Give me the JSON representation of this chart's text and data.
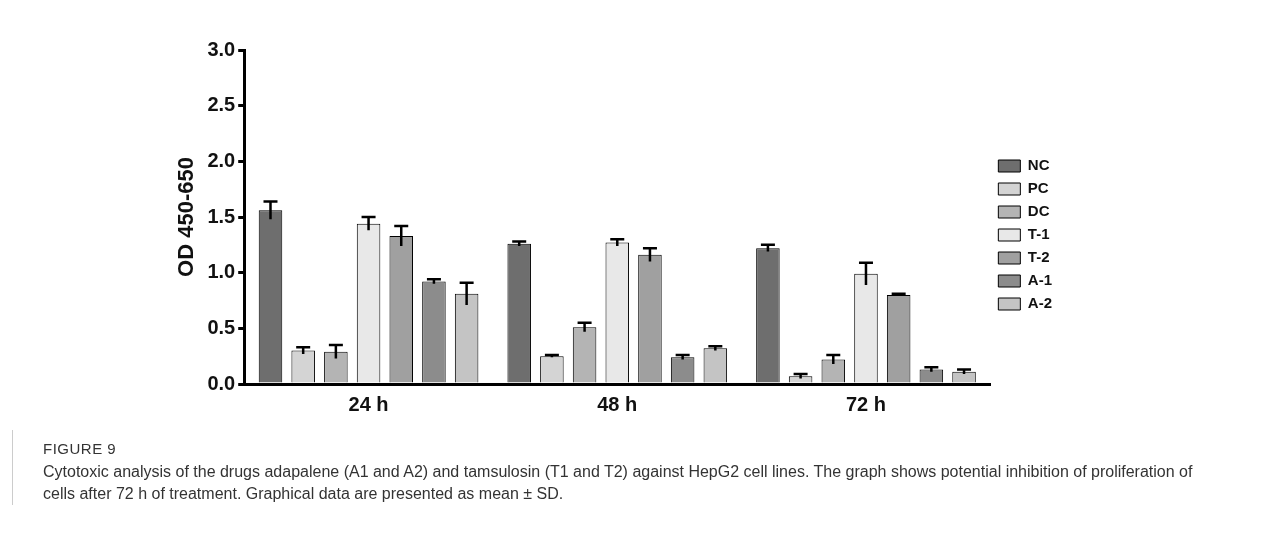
{
  "chart_data": {
    "type": "bar",
    "ylabel": "OD 450-650",
    "categories": [
      "24 h",
      "48 h",
      "72 h"
    ],
    "series": [
      {
        "name": "NC",
        "color": "#6e6e6e",
        "values": [
          1.56,
          1.26,
          1.22
        ],
        "errors": [
          0.08,
          0.02,
          0.03
        ]
      },
      {
        "name": "PC",
        "color": "#d4d4d4",
        "values": [
          0.3,
          0.25,
          0.07
        ],
        "errors": [
          0.03,
          0.01,
          0.02
        ]
      },
      {
        "name": "DC",
        "color": "#b4b4b4",
        "values": [
          0.29,
          0.51,
          0.22
        ],
        "errors": [
          0.06,
          0.04,
          0.04
        ]
      },
      {
        "name": "T-1",
        "color": "#e8e8e8",
        "values": [
          1.44,
          1.27,
          0.99
        ],
        "errors": [
          0.06,
          0.03,
          0.1
        ]
      },
      {
        "name": "T-2",
        "color": "#a0a0a0",
        "values": [
          1.33,
          1.16,
          0.8
        ],
        "errors": [
          0.09,
          0.06,
          0.01
        ]
      },
      {
        "name": "A-1",
        "color": "#8c8c8c",
        "values": [
          0.92,
          0.24,
          0.13
        ],
        "errors": [
          0.02,
          0.02,
          0.02
        ]
      },
      {
        "name": "A-2",
        "color": "#c4c4c4",
        "values": [
          0.81,
          0.32,
          0.11
        ],
        "errors": [
          0.1,
          0.02,
          0.02
        ]
      }
    ],
    "ylim": [
      0,
      3
    ],
    "yticks": [
      {
        "value": 0,
        "label": "0.0"
      },
      {
        "value": 0.5,
        "label": "0.5"
      },
      {
        "value": 1,
        "label": "1.0"
      },
      {
        "value": 1.5,
        "label": "1.5"
      },
      {
        "value": 2,
        "label": "2.0"
      },
      {
        "value": 2.5,
        "label": "2.5"
      },
      {
        "value": 3,
        "label": "3.0"
      }
    ],
    "grid": false,
    "legend": "right",
    "annotations": [
      "FIGURE 9",
      "Cytotoxic analysis of the drugs adapalene (A1 and A2) and tamsulosin (T1 and T2) against HepG2 cell lines. The graph shows potential inhibition of proliferation of cells after 72 h of treatment. Graphical data are presented as mean ± SD."
    ]
  }
}
